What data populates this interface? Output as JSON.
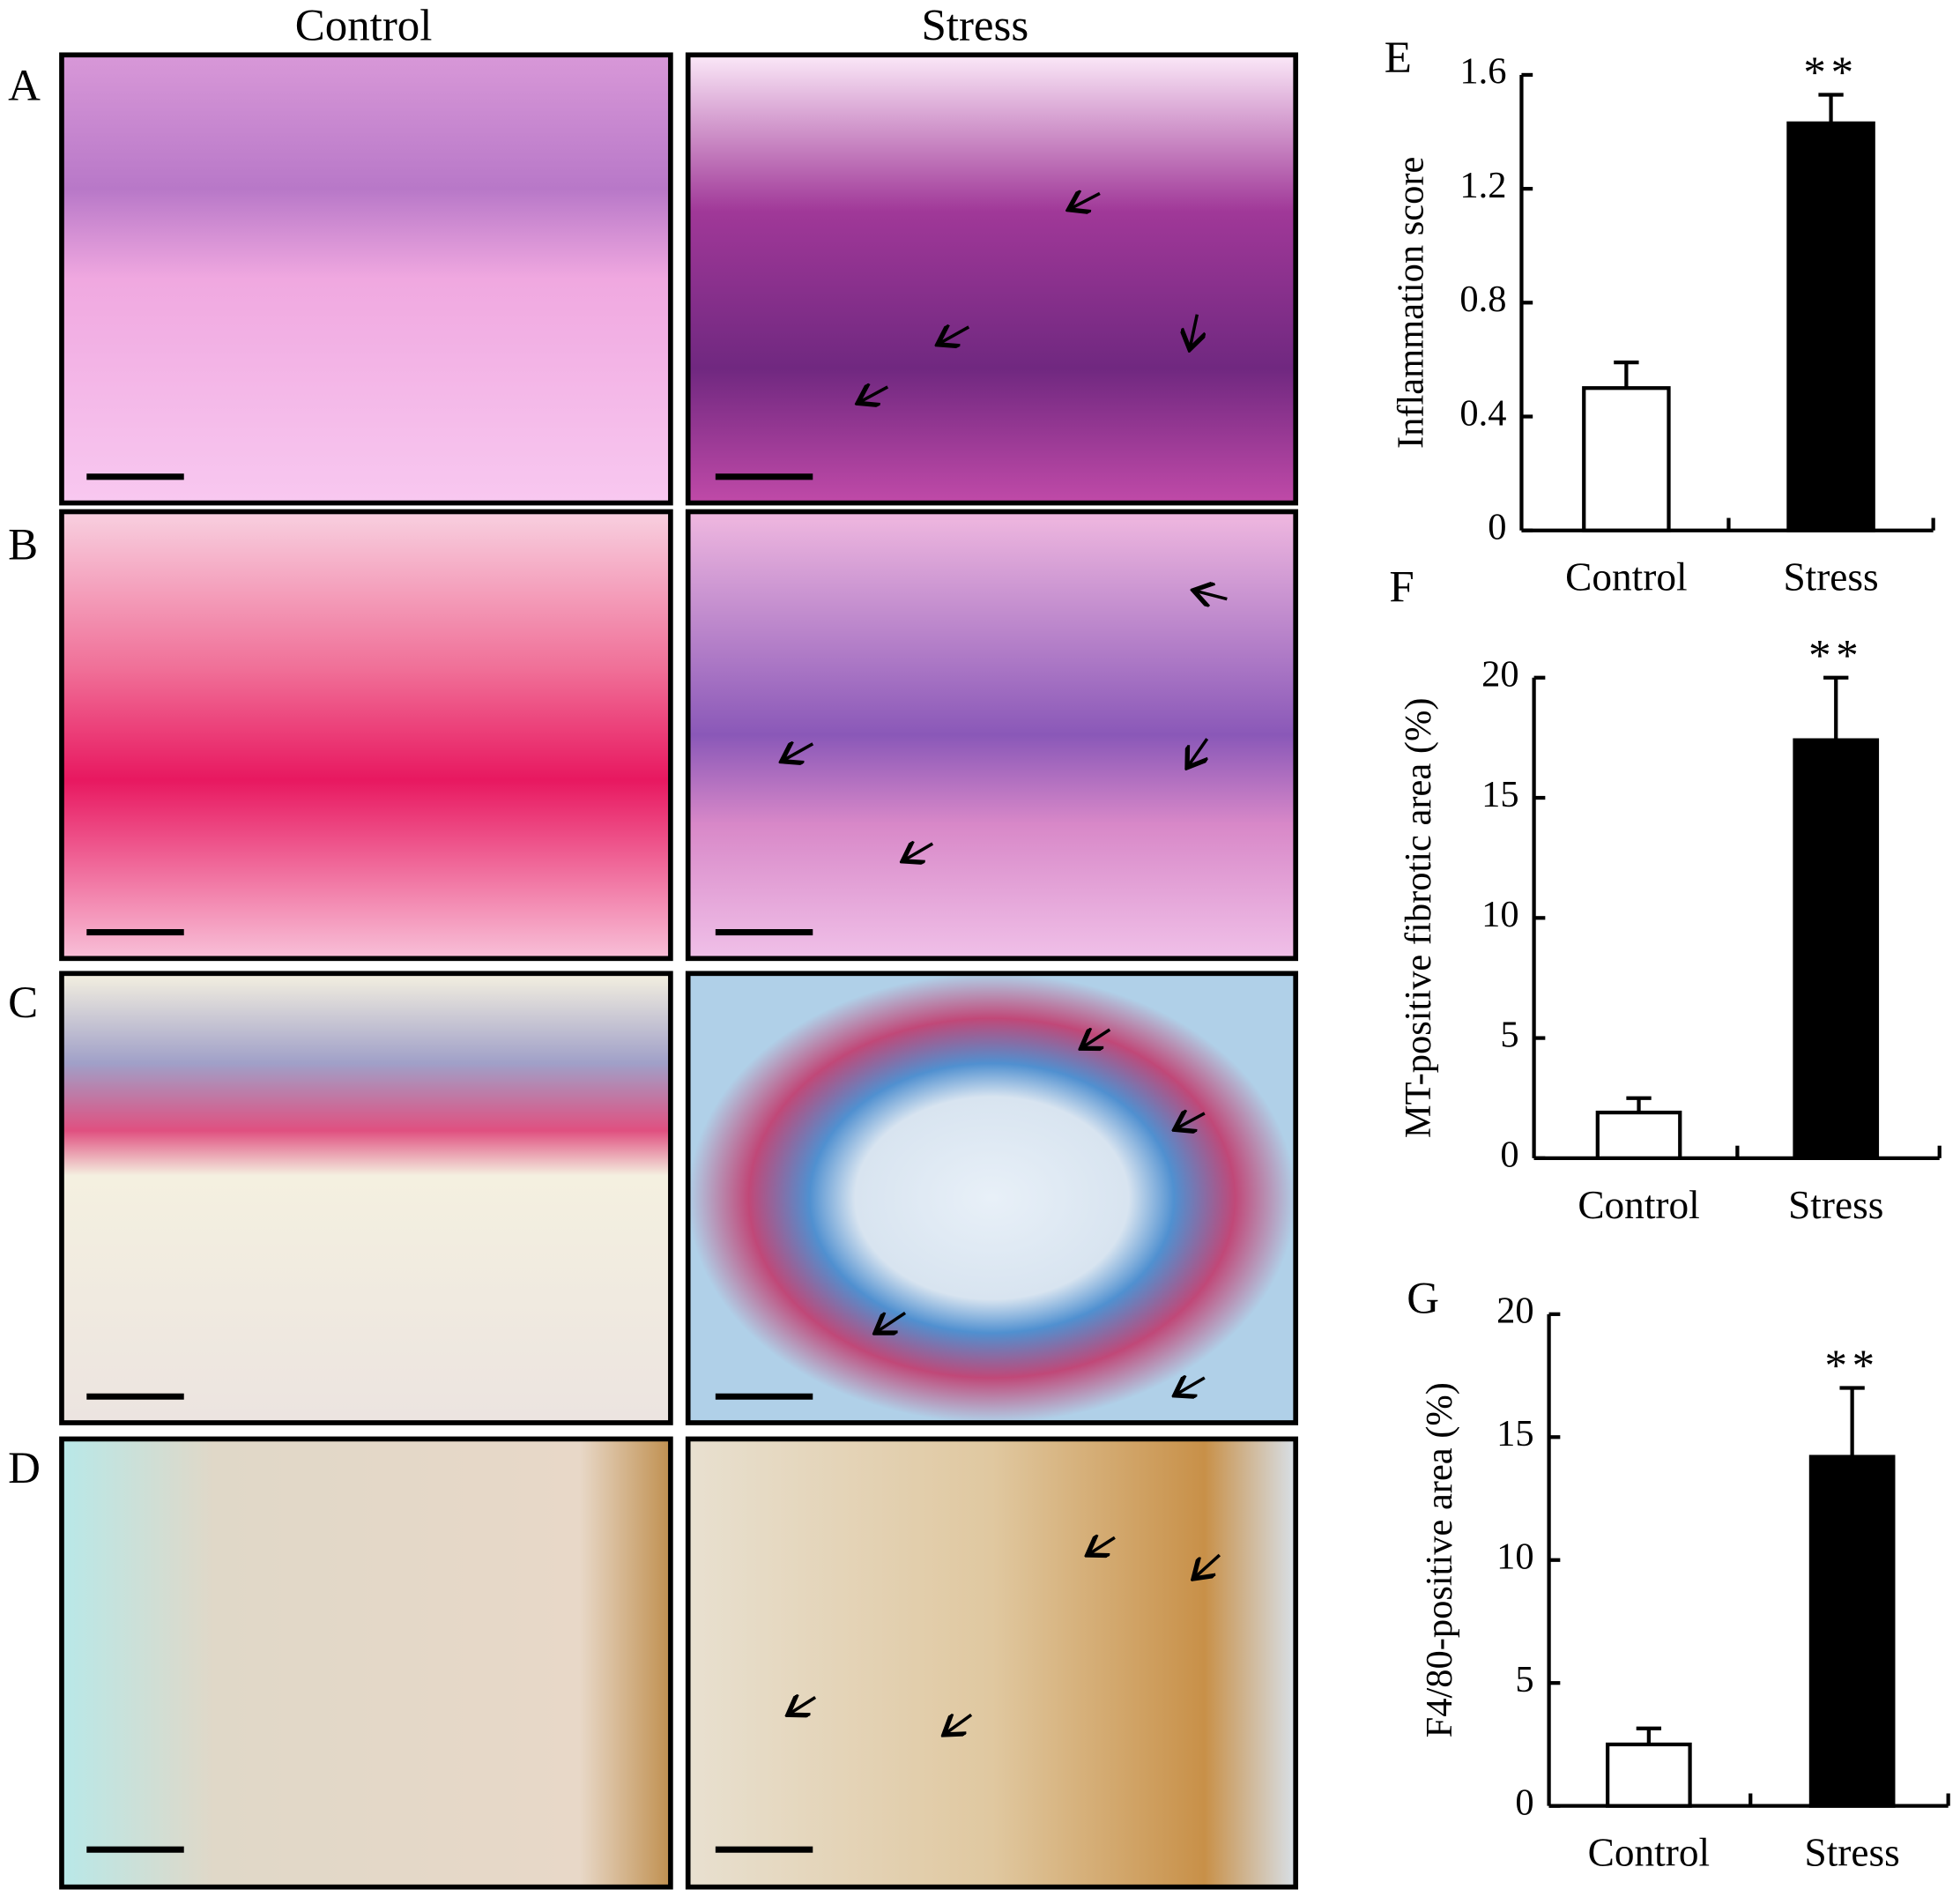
{
  "figure": {
    "column_titles": [
      "Control",
      "Stress"
    ],
    "panel_labels": [
      "A",
      "B",
      "C",
      "D"
    ]
  },
  "chart_data": [
    {
      "type": "bar",
      "label": "E",
      "y_label": "Inflammation score",
      "categories": [
        "Control",
        "Stress"
      ],
      "values": [
        0.5,
        1.43
      ],
      "errors": [
        0.09,
        0.1
      ],
      "colors": [
        "#ffffff",
        "#000000"
      ],
      "annotation": "**",
      "ylim": [
        0,
        1.6
      ],
      "yticks": [
        0,
        0.4,
        0.8,
        1.2,
        1.6
      ]
    },
    {
      "type": "bar",
      "label": "F",
      "y_label": "MT-positive fibrotic area (%)",
      "categories": [
        "Control",
        "Stress"
      ],
      "values": [
        1.9,
        17.4
      ],
      "errors": [
        0.6,
        2.6
      ],
      "colors": [
        "#ffffff",
        "#000000"
      ],
      "annotation": "**",
      "ylim": [
        0,
        20
      ],
      "yticks": [
        0,
        5,
        10,
        15,
        20
      ]
    },
    {
      "type": "bar",
      "label": "G",
      "y_label": "F4/80-positive  area (%)",
      "categories": [
        "Control",
        "Stress"
      ],
      "values": [
        2.5,
        14.2
      ],
      "errors": [
        0.65,
        2.8
      ],
      "colors": [
        "#ffffff",
        "#000000"
      ],
      "annotation": "**",
      "ylim": [
        0,
        20
      ],
      "yticks": [
        0,
        5,
        10,
        15,
        20
      ]
    }
  ]
}
